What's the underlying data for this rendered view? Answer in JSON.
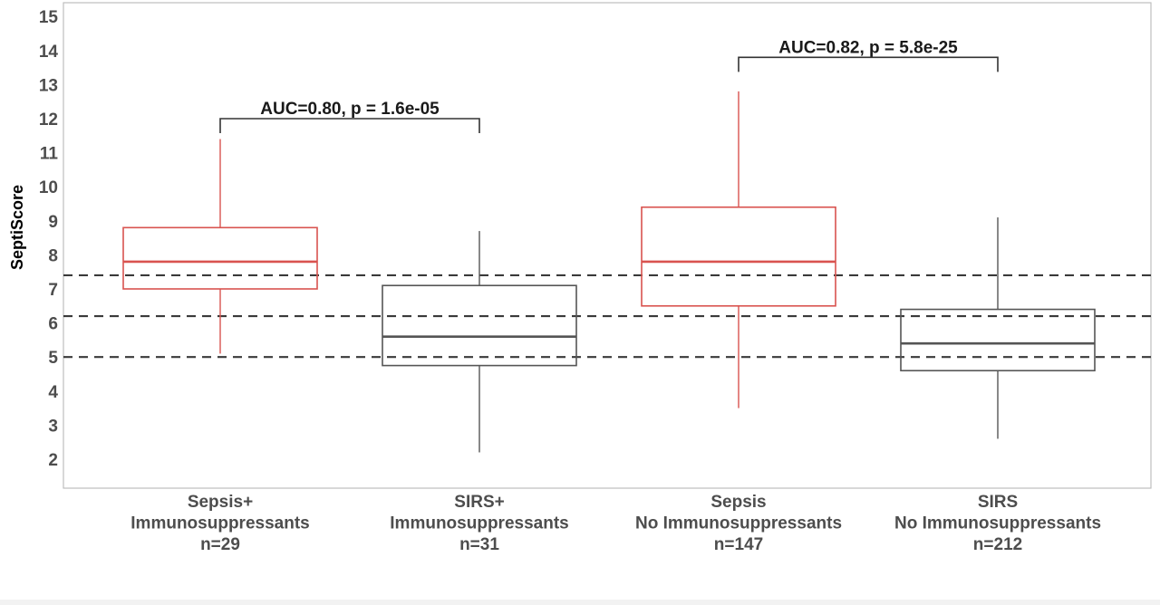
{
  "chart_data": {
    "type": "box",
    "ylabel": "SeptiScore",
    "xlabel": "",
    "ylim": [
      1.2,
      15.4
    ],
    "yticks": [
      2,
      3,
      4,
      5,
      6,
      7,
      8,
      9,
      10,
      11,
      12,
      13,
      14,
      15
    ],
    "grid": false,
    "categories": [
      {
        "lines": [
          "Sepsis+",
          "Immunosuppressants",
          "n=29"
        ]
      },
      {
        "lines": [
          "SIRS+",
          "Immunosuppressants",
          "n=31"
        ]
      },
      {
        "lines": [
          "Sepsis",
          "No Immunosuppressants",
          "n=147"
        ]
      },
      {
        "lines": [
          "SIRS",
          "No Immunosuppressants",
          "n=212"
        ]
      }
    ],
    "boxes": [
      {
        "min": 5.1,
        "q1": 7.0,
        "median": 7.8,
        "q3": 8.8,
        "max": 11.4,
        "color": "#d9534f"
      },
      {
        "min": 2.2,
        "q1": 4.75,
        "median": 5.6,
        "q3": 7.1,
        "max": 8.7,
        "color": "#555555"
      },
      {
        "min": 3.5,
        "q1": 6.5,
        "median": 7.8,
        "q3": 9.4,
        "max": 12.8,
        "color": "#d9534f"
      },
      {
        "min": 2.6,
        "q1": 4.6,
        "median": 5.4,
        "q3": 6.4,
        "max": 9.1,
        "color": "#555555"
      }
    ],
    "reference_lines": [
      7.4,
      6.2,
      5.0
    ],
    "annotations": [
      {
        "text": "AUC=0.80, p = 1.6e-05",
        "from": 0,
        "to": 1,
        "y": 12.0
      },
      {
        "text": "AUC=0.82, p = 5.8e-25",
        "from": 2,
        "to": 3,
        "y": 13.8
      }
    ]
  }
}
